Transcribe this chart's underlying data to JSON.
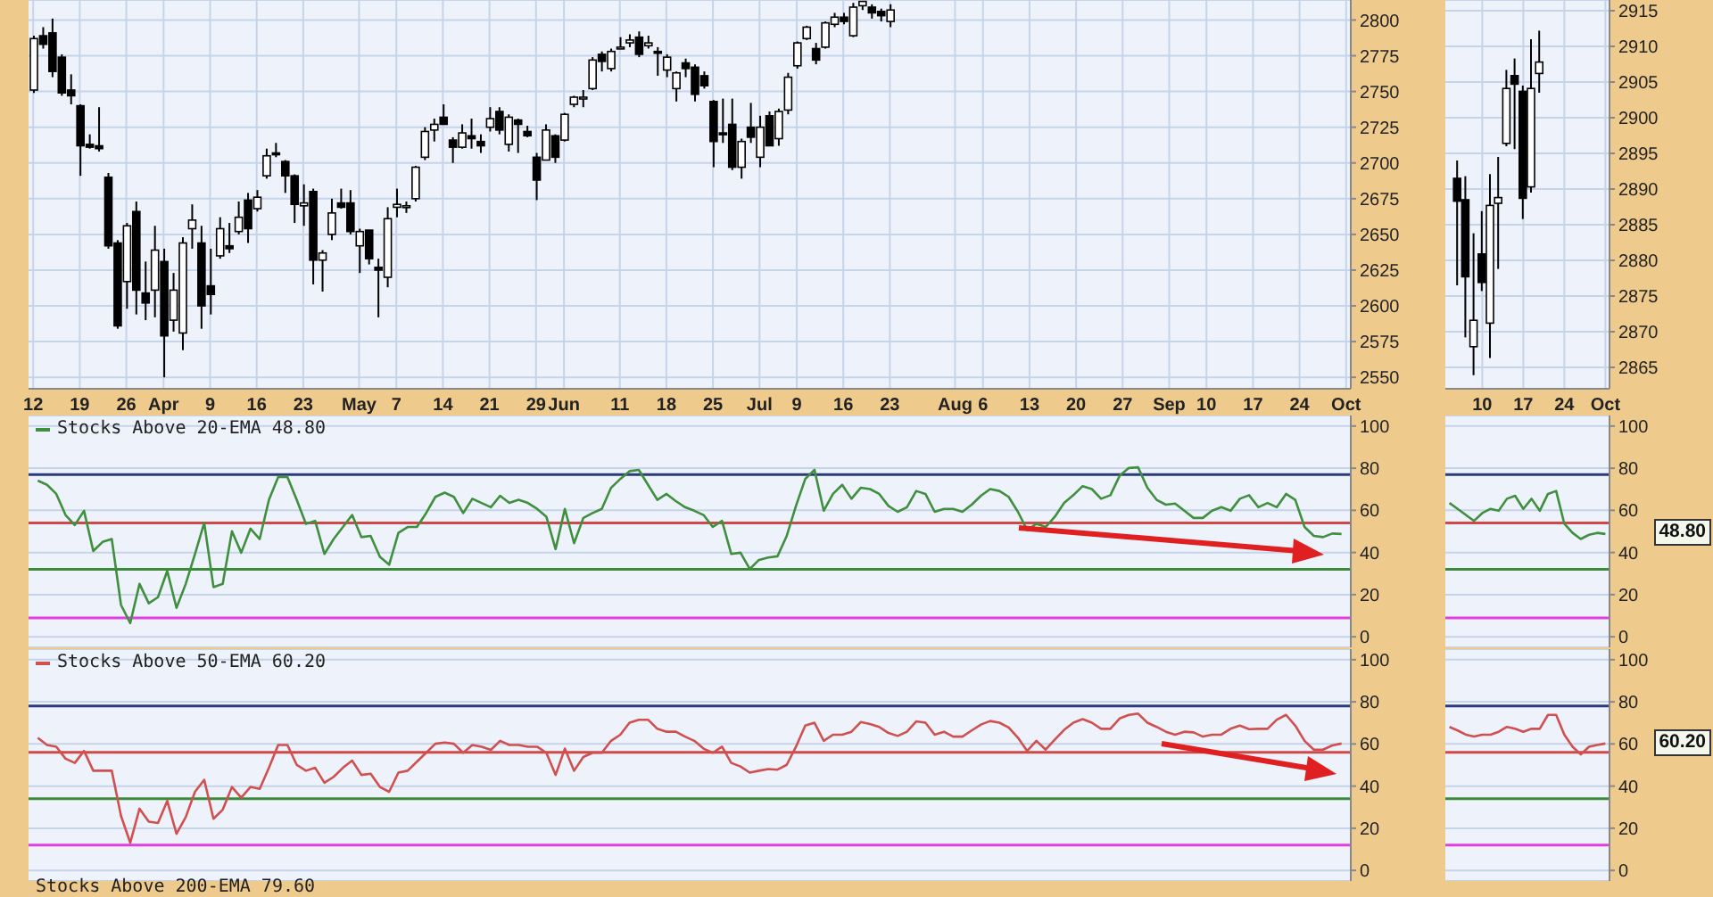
{
  "chart_data": [
    {
      "type": "candlestick",
      "categories": [
        "12",
        null,
        null,
        null,
        null,
        "19",
        null,
        null,
        null,
        null,
        "26",
        null,
        null,
        null,
        "Apr",
        null,
        null,
        null,
        null,
        "9",
        null,
        null,
        null,
        null,
        "16",
        null,
        null,
        null,
        null,
        "23",
        null,
        null,
        null,
        null,
        null,
        "May",
        null,
        null,
        null,
        "7",
        null,
        null,
        null,
        null,
        "14",
        null,
        null,
        null,
        null,
        "21",
        null,
        null,
        null,
        null,
        "29",
        null,
        null,
        "Jun",
        null,
        null,
        null,
        null,
        null,
        "11",
        null,
        null,
        null,
        null,
        "18",
        null,
        null,
        null,
        null,
        "25",
        null,
        null,
        null,
        null,
        "Jul",
        null,
        null,
        null,
        "9",
        null,
        null,
        null,
        null,
        "16",
        null,
        null,
        null,
        null,
        "23",
        null,
        null,
        null,
        null,
        null,
        null,
        "Aug",
        null,
        null,
        "6",
        null,
        null,
        null,
        null,
        "13",
        null,
        null,
        null,
        null,
        "20",
        null,
        null,
        null,
        null,
        "27",
        null,
        null,
        null,
        null,
        "Sep",
        null,
        null,
        null,
        "10",
        null,
        null,
        null,
        null,
        "17",
        null,
        null,
        null,
        null,
        "24",
        null,
        null,
        null,
        null,
        "Oct"
      ],
      "ohlc": [
        [
          2751,
          2789,
          2749,
          2787
        ],
        [
          2789,
          2795,
          2780,
          2783
        ],
        [
          2791,
          2801,
          2760,
          2764
        ],
        [
          2774,
          2776,
          2747,
          2749
        ],
        [
          2751,
          2762,
          2741,
          2747
        ],
        [
          2740,
          2741,
          2691,
          2712
        ],
        [
          2713,
          2720,
          2710,
          2711
        ],
        [
          2712,
          2739,
          2708,
          2710
        ],
        [
          2690,
          2693,
          2640,
          2642
        ],
        [
          2644,
          2646,
          2584,
          2586
        ],
        [
          2617,
          2658,
          2598,
          2656
        ],
        [
          2666,
          2673,
          2594,
          2611
        ],
        [
          2609,
          2631,
          2590,
          2602
        ],
        [
          2611,
          2656,
          2592,
          2639
        ],
        [
          2631,
          2640,
          2550,
          2579
        ],
        [
          2590,
          2623,
          2582,
          2611
        ],
        [
          2581,
          2648,
          2569,
          2644
        ],
        [
          2654,
          2671,
          2640,
          2660
        ],
        [
          2644,
          2656,
          2584,
          2600
        ],
        [
          2614,
          2640,
          2594,
          2608
        ],
        [
          2635,
          2662,
          2633,
          2654
        ],
        [
          2642,
          2658,
          2637,
          2640
        ],
        [
          2652,
          2673,
          2650,
          2662
        ],
        [
          2674,
          2679,
          2644,
          2654
        ],
        [
          2668,
          2681,
          2666,
          2676
        ],
        [
          2691,
          2710,
          2689,
          2705
        ],
        [
          2707,
          2714,
          2704,
          2706
        ],
        [
          2701,
          2702,
          2679,
          2691
        ],
        [
          2691,
          2692,
          2658,
          2671
        ],
        [
          2670,
          2685,
          2656,
          2672
        ],
        [
          2680,
          2682,
          2615,
          2632
        ],
        [
          2632,
          2639,
          2610,
          2637
        ],
        [
          2650,
          2675,
          2646,
          2665
        ],
        [
          2672,
          2682,
          2668,
          2669
        ],
        [
          2672,
          2681,
          2650,
          2652
        ],
        [
          2642,
          2654,
          2623,
          2652
        ],
        [
          2653,
          2653,
          2629,
          2633
        ],
        [
          2627,
          2633,
          2592,
          2625
        ],
        [
          2620,
          2669,
          2613,
          2661
        ],
        [
          2669,
          2682,
          2662,
          2671
        ],
        [
          2670,
          2673,
          2665,
          2670
        ],
        [
          2675,
          2698,
          2673,
          2697
        ],
        [
          2704,
          2725,
          2702,
          2722
        ],
        [
          2723,
          2731,
          2715,
          2727
        ],
        [
          2732,
          2741,
          2727,
          2727
        ],
        [
          2716,
          2718,
          2700,
          2711
        ],
        [
          2711,
          2727,
          2710,
          2721
        ],
        [
          2719,
          2731,
          2710,
          2717
        ],
        [
          2715,
          2720,
          2707,
          2712
        ],
        [
          2725,
          2739,
          2722,
          2731
        ],
        [
          2736,
          2739,
          2720,
          2723
        ],
        [
          2713,
          2734,
          2708,
          2732
        ],
        [
          2730,
          2731,
          2707,
          2727
        ],
        [
          2722,
          2726,
          2718,
          2719
        ],
        [
          2704,
          2707,
          2674,
          2688
        ],
        [
          2702,
          2727,
          2702,
          2723
        ],
        [
          2719,
          2720,
          2700,
          2704
        ],
        [
          2716,
          2735,
          2715,
          2734
        ],
        [
          2741,
          2747,
          2739,
          2746
        ],
        [
          2746,
          2751,
          2739,
          2746
        ],
        [
          2752,
          2774,
          2751,
          2772
        ],
        [
          2776,
          2778,
          2764,
          2771
        ],
        [
          2766,
          2780,
          2764,
          2778
        ],
        [
          2780,
          2788,
          2780,
          2781
        ],
        [
          2784,
          2790,
          2781,
          2786
        ],
        [
          2788,
          2792,
          2774,
          2776
        ],
        [
          2782,
          2789,
          2780,
          2784
        ],
        [
          2778,
          2781,
          2761,
          2777
        ],
        [
          2765,
          2776,
          2760,
          2774
        ],
        [
          2752,
          2764,
          2743,
          2763
        ],
        [
          2770,
          2773,
          2760,
          2766
        ],
        [
          2767,
          2769,
          2743,
          2748
        ],
        [
          2761,
          2764,
          2752,
          2754
        ],
        [
          2743,
          2744,
          2697,
          2715
        ],
        [
          2721,
          2745,
          2714,
          2720
        ],
        [
          2727,
          2745,
          2695,
          2697
        ],
        [
          2697,
          2717,
          2689,
          2715
        ],
        [
          2725,
          2742,
          2714,
          2718
        ],
        [
          2704,
          2733,
          2697,
          2725
        ],
        [
          2733,
          2736,
          2712,
          2712
        ],
        [
          2717,
          2738,
          2712,
          2736
        ],
        [
          2737,
          2763,
          2734,
          2760
        ],
        [
          2768,
          2785,
          2766,
          2784
        ],
        [
          2787,
          2796,
          2786,
          2795
        ],
        [
          2780,
          2784,
          2769,
          2772
        ],
        [
          2781,
          2799,
          2780,
          2798
        ],
        [
          2797,
          2805,
          2795,
          2802
        ],
        [
          2802,
          2805,
          2797,
          2799
        ],
        [
          2789,
          2812,
          2788,
          2809
        ],
        [
          2810,
          2813,
          2807,
          2813
        ],
        [
          2809,
          2811,
          2801,
          2805
        ],
        [
          2806,
          2808,
          2799,
          2803
        ],
        [
          2799,
          2811,
          2795,
          2807
        ],
        null,
        null,
        null,
        null,
        null,
        null,
        null,
        null,
        null,
        null,
        null,
        null,
        null,
        null,
        null,
        null,
        null,
        null,
        null,
        null,
        null,
        null,
        null,
        null,
        null,
        null,
        null,
        null,
        null,
        null,
        null,
        null,
        null,
        null,
        null,
        null,
        null,
        null,
        null,
        null,
        null,
        null,
        null,
        null,
        null,
        null,
        null,
        null,
        null
      ],
      "ylim": [
        2542,
        2814
      ],
      "yticks": [
        2550,
        2575,
        2600,
        2625,
        2650,
        2675,
        2700,
        2725,
        2750,
        2775,
        2800
      ],
      "grid": true
    },
    {
      "type": "candlestick",
      "categories": [
        null,
        null,
        null,
        null,
        "10",
        null,
        null,
        null,
        null,
        "17",
        null,
        null,
        null,
        null,
        "24",
        null,
        null,
        null,
        null,
        "Oct"
      ],
      "ohlc": [
        null,
        [
          2891.5,
          2894,
          2876.5,
          2888.3
        ],
        [
          2888.5,
          2891.8,
          2869.2,
          2877.7
        ],
        [
          2867.9,
          2883.8,
          2863.9,
          2871.6
        ],
        [
          2880.9,
          2886.9,
          2875.7,
          2876.9
        ],
        [
          2871.2,
          2892.1,
          2866.3,
          2887.7
        ],
        [
          2888.0,
          2894.5,
          2878.8,
          2888.8
        ],
        [
          2896.4,
          2906.7,
          2896.0,
          2904.1
        ],
        [
          2905.9,
          2908.3,
          2895.6,
          2904.7
        ],
        [
          2903.7,
          2904.5,
          2885.8,
          2888.7
        ],
        [
          2890.3,
          2911.0,
          2889.5,
          2904.1
        ],
        [
          2906.2,
          2912.2,
          2903.5,
          2907.8
        ],
        null,
        null,
        null,
        null,
        null,
        null,
        null,
        null
      ],
      "ylim": [
        2862,
        2916.5
      ],
      "yticks": [
        2865,
        2870,
        2875,
        2880,
        2885,
        2890,
        2895,
        2900,
        2905,
        2910,
        2915
      ],
      "grid": true
    },
    {
      "type": "line",
      "categories": [
        null,
        null,
        null,
        null,
        null,
        null,
        null,
        null,
        null,
        null,
        null,
        null,
        null,
        null,
        null,
        null,
        null,
        null,
        null,
        null,
        null,
        null,
        null,
        null,
        null,
        null,
        null,
        null,
        null,
        null,
        null,
        null,
        null,
        null,
        null,
        null,
        null,
        null,
        null,
        null,
        null,
        null,
        null,
        null,
        null,
        null,
        null,
        null,
        null,
        null,
        null,
        null,
        null,
        null,
        null,
        null,
        null,
        null,
        null,
        null,
        null,
        null,
        null,
        null,
        null,
        null,
        null,
        null,
        null,
        null,
        null,
        null,
        null,
        null,
        null,
        null,
        null,
        null,
        null,
        null,
        null,
        null,
        null,
        null,
        null,
        null,
        null,
        null,
        null,
        null,
        null,
        null,
        null,
        null,
        null,
        null,
        null,
        null,
        null,
        null,
        null,
        null,
        null,
        null,
        null,
        null,
        null,
        null,
        null,
        null,
        null,
        null,
        null,
        null,
        null,
        null,
        null,
        null,
        null,
        null,
        null,
        null,
        null,
        null,
        null,
        null,
        null,
        null,
        null,
        null,
        null,
        null,
        null,
        null,
        null,
        null,
        null,
        null,
        null,
        null,
        null,
        null
      ],
      "series": [
        {
          "name": "Stocks Above 20-EMA 48.80",
          "color": "#3f8f3f",
          "values": [
            74.1,
            72.1,
            67.8,
            57.8,
            53.0,
            59.8,
            40.7,
            45.0,
            46.4,
            15.1,
            6.5,
            25.1,
            15.9,
            18.8,
            31.3,
            13.7,
            25.1,
            39.3,
            54.1,
            23.6,
            25.1,
            50.1,
            39.9,
            51.3,
            46.4,
            65.0,
            75.8,
            75.8,
            65.0,
            53.6,
            55.0,
            39.3,
            46.4,
            52.1,
            57.8,
            47.3,
            47.9,
            37.9,
            34.2,
            49.3,
            52.1,
            52.1,
            58.7,
            66.4,
            68.4,
            66.4,
            58.7,
            65.5,
            63.5,
            61.5,
            66.9,
            63.5,
            65.0,
            63.5,
            60.7,
            57.0,
            41.6,
            60.7,
            44.4,
            56.4,
            58.7,
            60.7,
            70.7,
            74.9,
            78.6,
            79.2,
            72.1,
            65.0,
            67.8,
            64.4,
            61.5,
            59.8,
            57.8,
            52.1,
            55.0,
            39.3,
            39.9,
            32.2,
            36.5,
            37.6,
            38.2,
            47.9,
            62.1,
            74.9,
            79.2,
            59.8,
            67.8,
            72.1,
            65.5,
            70.7,
            70.1,
            67.8,
            62.1,
            59.3,
            61.5,
            69.2,
            67.8,
            59.3,
            60.7,
            60.7,
            59.3,
            62.7,
            66.9,
            70.1,
            69.2,
            66.4,
            59.3,
            50.7,
            53.6,
            52.1,
            57.0,
            63.5,
            67.2,
            71.5,
            70.1,
            65.5,
            67.2,
            76.4,
            80.1,
            80.4,
            70.7,
            65.0,
            62.7,
            63.2,
            59.8,
            56.4,
            56.4,
            59.8,
            61.5,
            59.8,
            65.5,
            67.2,
            61.5,
            63.5,
            61.5,
            67.8,
            65.0,
            52.1,
            47.9,
            47.3,
            49.0,
            48.8
          ]
        }
      ],
      "ref_lines": [
        {
          "axis": "y",
          "value": 77,
          "color": "#2a3a7a"
        },
        {
          "axis": "y",
          "value": 54,
          "color": "#d04848"
        },
        {
          "axis": "y",
          "value": 32,
          "color": "#3a8a3a"
        },
        {
          "axis": "y",
          "value": 9,
          "color": "#e040e0"
        }
      ],
      "ylim": [
        -5,
        105
      ],
      "yticks": [
        0,
        20,
        40,
        60,
        80,
        100
      ],
      "grid": "y",
      "legend": "top left",
      "tick_labels": "y"
    },
    {
      "type": "line",
      "categories": [
        null,
        null,
        null,
        null,
        null,
        null,
        null,
        null,
        null,
        null,
        null,
        null,
        null,
        null,
        null,
        null,
        null,
        null,
        null,
        null
      ],
      "series": [
        {
          "color": "#3f8f3f",
          "values": [
            63.5,
            60.7,
            57.8,
            55.0,
            58.7,
            60.7,
            59.8,
            65.5,
            66.9,
            60.7,
            65.5,
            59.8,
            67.8,
            69.2,
            53.6,
            49.3,
            46.4,
            48.4,
            49.3,
            48.8
          ]
        }
      ],
      "ref_lines": [
        {
          "axis": "y",
          "value": 77,
          "color": "#2a3a7a"
        },
        {
          "axis": "y",
          "value": 54,
          "color": "#d04848"
        },
        {
          "axis": "y",
          "value": 32,
          "color": "#3a8a3a"
        },
        {
          "axis": "y",
          "value": 9,
          "color": "#e040e0"
        }
      ],
      "annotations": [
        "48.80"
      ],
      "ylim": [
        -5,
        105
      ],
      "yticks": [
        0,
        20,
        40,
        60,
        80,
        100
      ],
      "grid": "y",
      "tick_labels": "y"
    },
    {
      "type": "line",
      "categories": [
        null,
        null,
        null,
        null,
        null,
        null,
        null,
        null,
        null,
        null,
        null,
        null,
        null,
        null,
        null,
        null,
        null,
        null,
        null,
        null,
        null,
        null,
        null,
        null,
        null,
        null,
        null,
        null,
        null,
        null,
        null,
        null,
        null,
        null,
        null,
        null,
        null,
        null,
        null,
        null,
        null,
        null,
        null,
        null,
        null,
        null,
        null,
        null,
        null,
        null,
        null,
        null,
        null,
        null,
        null,
        null,
        null,
        null,
        null,
        null,
        null,
        null,
        null,
        null,
        null,
        null,
        null,
        null,
        null,
        null,
        null,
        null,
        null,
        null,
        null,
        null,
        null,
        null,
        null,
        null,
        null,
        null,
        null,
        null,
        null,
        null,
        null,
        null,
        null,
        null,
        null,
        null,
        null,
        null,
        null,
        null,
        null,
        null,
        null,
        null,
        null,
        null,
        null,
        null,
        null,
        null,
        null,
        null,
        null,
        null,
        null,
        null,
        null,
        null,
        null,
        null,
        null,
        null,
        null,
        null,
        null,
        null,
        null,
        null,
        null,
        null,
        null,
        null,
        null,
        null,
        null,
        null,
        null,
        null,
        null,
        null,
        null,
        null,
        null,
        null,
        null,
        null
      ],
      "series": [
        {
          "name": "Stocks Above 50-EMA 60.20",
          "color": "#d05050",
          "values": [
            62.9,
            59.5,
            58.7,
            53.0,
            51.0,
            56.7,
            47.3,
            47.3,
            47.3,
            25.9,
            13.1,
            29.3,
            23.1,
            22.5,
            33.0,
            17.4,
            25.3,
            37.3,
            43.0,
            24.5,
            28.8,
            39.6,
            34.5,
            39.6,
            38.7,
            48.7,
            59.5,
            59.5,
            50.1,
            47.3,
            48.7,
            41.6,
            44.4,
            48.7,
            52.1,
            45.3,
            45.9,
            39.6,
            37.3,
            46.4,
            47.3,
            51.6,
            55.8,
            60.1,
            60.7,
            60.1,
            55.8,
            59.5,
            58.7,
            57.2,
            61.5,
            59.5,
            59.5,
            58.7,
            58.7,
            55.8,
            45.3,
            57.8,
            47.3,
            53.8,
            55.8,
            55.8,
            61.5,
            64.4,
            70.1,
            71.5,
            71.5,
            67.2,
            65.8,
            65.8,
            63.5,
            61.5,
            57.8,
            55.8,
            58.7,
            51.0,
            49.3,
            46.4,
            47.3,
            48.1,
            47.8,
            50.1,
            58.7,
            68.7,
            70.1,
            61.5,
            64.4,
            64.4,
            65.8,
            70.4,
            69.5,
            68.1,
            65.2,
            63.8,
            65.8,
            70.7,
            70.1,
            64.4,
            65.8,
            63.5,
            63.5,
            66.4,
            69.2,
            70.9,
            70.1,
            67.8,
            63.0,
            56.7,
            61.5,
            57.3,
            62.1,
            66.7,
            70.1,
            71.8,
            70.1,
            67.2,
            67.2,
            72.1,
            73.8,
            74.4,
            70.1,
            68.1,
            65.8,
            64.4,
            65.8,
            65.5,
            63.5,
            64.4,
            64.4,
            67.2,
            68.7,
            67.0,
            67.2,
            67.2,
            71.5,
            73.8,
            68.7,
            61.5,
            57.3,
            57.3,
            59.3,
            60.2
          ]
        }
      ],
      "ref_lines": [
        {
          "axis": "y",
          "value": 78,
          "color": "#2a3a7a"
        },
        {
          "axis": "y",
          "value": 56,
          "color": "#d04848"
        },
        {
          "axis": "y",
          "value": 34,
          "color": "#3a8a3a"
        },
        {
          "axis": "y",
          "value": 12,
          "color": "#e040e0"
        }
      ],
      "ylim": [
        -5,
        105
      ],
      "yticks": [
        0,
        20,
        40,
        60,
        80,
        100
      ],
      "grid": "y",
      "legend": "top left",
      "tick_labels": "y"
    },
    {
      "type": "line",
      "categories": [
        null,
        null,
        null,
        null,
        null,
        null,
        null,
        null,
        null,
        null,
        null,
        null,
        null,
        null,
        null,
        null,
        null,
        null,
        null,
        null
      ],
      "series": [
        {
          "color": "#d05050",
          "values": [
            68.1,
            66.4,
            64.4,
            63.5,
            64.4,
            64.4,
            65.8,
            68.1,
            67.2,
            65.8,
            67.2,
            67.2,
            73.8,
            73.8,
            64.4,
            58.7,
            55.0,
            58.7,
            59.5,
            60.2
          ]
        }
      ],
      "ref_lines": [
        {
          "axis": "y",
          "value": 78,
          "color": "#2a3a7a"
        },
        {
          "axis": "y",
          "value": 56,
          "color": "#d04848"
        },
        {
          "axis": "y",
          "value": 34,
          "color": "#3a8a3a"
        },
        {
          "axis": "y",
          "value": 12,
          "color": "#e040e0"
        }
      ],
      "annotations": [
        "60.20"
      ],
      "ylim": [
        -5,
        105
      ],
      "yticks": [
        0,
        20,
        40,
        60,
        80,
        100
      ],
      "grid": "y",
      "tick_labels": "y"
    },
    {
      "type": "other",
      "title": "Stocks Above 200-EMA 79.60"
    }
  ]
}
